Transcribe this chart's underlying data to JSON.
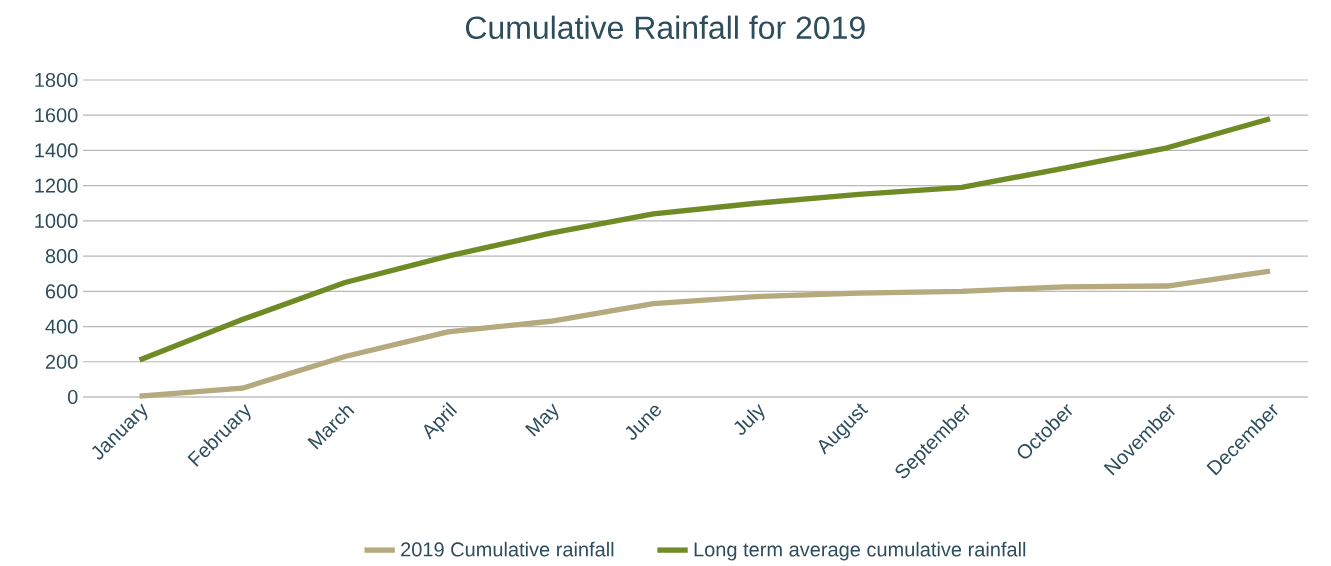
{
  "chart_data": {
    "type": "line",
    "title": "Cumulative Rainfall for 2019",
    "categories": [
      "January",
      "February",
      "March",
      "April",
      "May",
      "June",
      "July",
      "August",
      "September",
      "October",
      "November",
      "December"
    ],
    "series": [
      {
        "name": "2019 Cumulative rainfall",
        "color": "#b5a97e",
        "values": [
          5,
          50,
          230,
          370,
          430,
          530,
          570,
          590,
          600,
          625,
          630,
          715
        ]
      },
      {
        "name": "Long term average cumulative rainfall",
        "color": "#6f8b25",
        "values": [
          210,
          440,
          650,
          800,
          930,
          1040,
          1100,
          1150,
          1190,
          1300,
          1415,
          1580
        ]
      }
    ],
    "ylim": [
      0,
      1800
    ],
    "yticks": [
      0,
      200,
      400,
      600,
      800,
      1000,
      1200,
      1400,
      1600,
      1800
    ],
    "grid": "y",
    "legend": "bottom",
    "marker": "none",
    "line_style": "solid"
  }
}
